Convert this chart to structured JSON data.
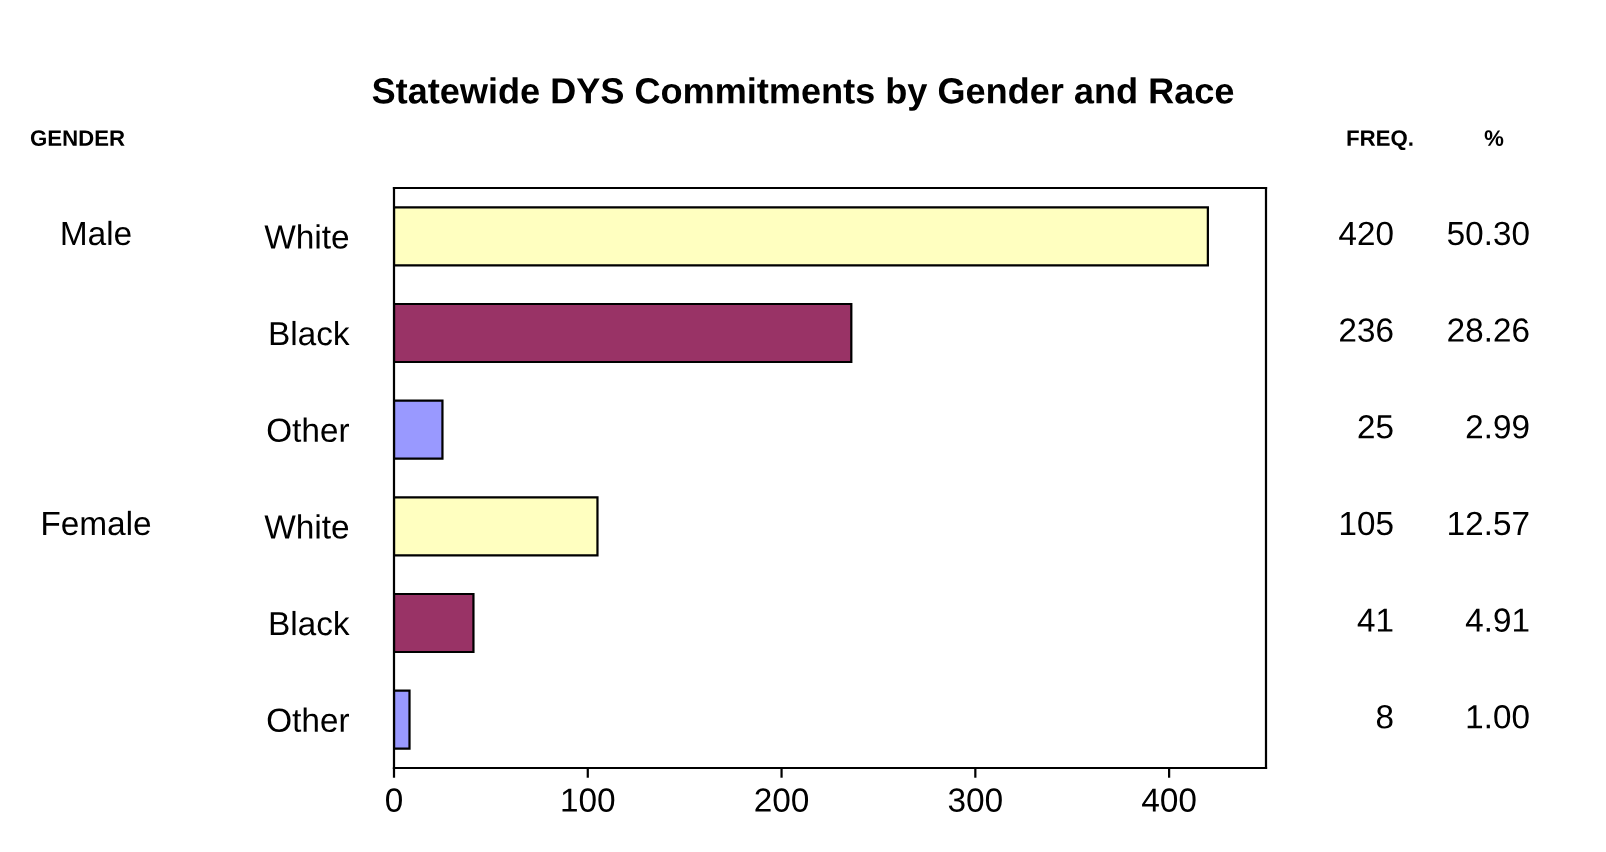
{
  "chart_data": {
    "type": "bar",
    "orientation": "horizontal",
    "title": "Statewide DYS Commitments by Gender and Race",
    "categories": [
      "White",
      "Black",
      "Other",
      "White",
      "Black",
      "Other"
    ],
    "values": [
      420,
      236,
      25,
      105,
      41,
      8
    ],
    "colors": [
      "#ffffc0",
      "#993366",
      "#9999ff",
      "#ffffc0",
      "#993366",
      "#9999ff"
    ],
    "xlim": [
      0,
      450
    ],
    "xticks": [
      0,
      100,
      200,
      300,
      400
    ],
    "grid": false,
    "value_labels": [
      "420",
      "236",
      "25",
      "105",
      "41",
      "8"
    ],
    "annotations": [
      "GENDER",
      "FREQ.",
      "%",
      "Male",
      "Female",
      "50.30",
      "28.26",
      "2.99",
      "12.57",
      "4.91",
      "1.00"
    ]
  }
}
